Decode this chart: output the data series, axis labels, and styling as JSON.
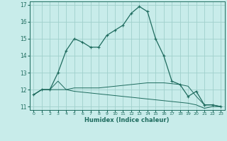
{
  "title": "",
  "xlabel": "Humidex (Indice chaleur)",
  "bg_color": "#c8ecea",
  "line_color": "#1e6b5e",
  "grid_color": "#a0d0cc",
  "xlim": [
    -0.5,
    23.5
  ],
  "ylim": [
    10.8,
    17.2
  ],
  "yticks": [
    11,
    12,
    13,
    14,
    15,
    16,
    17
  ],
  "xticks": [
    0,
    1,
    2,
    3,
    4,
    5,
    6,
    7,
    8,
    9,
    10,
    11,
    12,
    13,
    14,
    15,
    16,
    17,
    18,
    19,
    20,
    21,
    22,
    23
  ],
  "line1_x": [
    0,
    1,
    2,
    3,
    4,
    5,
    6,
    7,
    8,
    9,
    10,
    11,
    12,
    13,
    14,
    15,
    16,
    17,
    18,
    19,
    20,
    21,
    22,
    23
  ],
  "line1_y": [
    11.7,
    12.0,
    12.0,
    13.0,
    14.3,
    15.0,
    14.8,
    14.5,
    14.5,
    15.2,
    15.5,
    15.8,
    16.5,
    16.9,
    16.6,
    15.0,
    14.0,
    12.5,
    12.3,
    11.6,
    11.9,
    11.1,
    11.1,
    11.0
  ],
  "line2_x": [
    0,
    1,
    2,
    3,
    4,
    5,
    6,
    7,
    8,
    9,
    10,
    11,
    12,
    13,
    14,
    15,
    16,
    17,
    18,
    19,
    20,
    21,
    22,
    23
  ],
  "line2_y": [
    11.7,
    12.0,
    12.0,
    12.5,
    12.0,
    12.1,
    12.1,
    12.1,
    12.1,
    12.15,
    12.2,
    12.25,
    12.3,
    12.35,
    12.4,
    12.4,
    12.4,
    12.35,
    12.3,
    12.2,
    11.6,
    11.1,
    11.1,
    11.0
  ],
  "line3_x": [
    0,
    1,
    2,
    3,
    4,
    5,
    6,
    7,
    8,
    9,
    10,
    11,
    12,
    13,
    14,
    15,
    16,
    17,
    18,
    19,
    20,
    21,
    22,
    23
  ],
  "line3_y": [
    11.7,
    12.0,
    12.0,
    12.0,
    12.0,
    11.9,
    11.85,
    11.8,
    11.75,
    11.7,
    11.65,
    11.6,
    11.55,
    11.5,
    11.45,
    11.4,
    11.35,
    11.3,
    11.25,
    11.2,
    11.1,
    10.9,
    11.0,
    11.0
  ]
}
